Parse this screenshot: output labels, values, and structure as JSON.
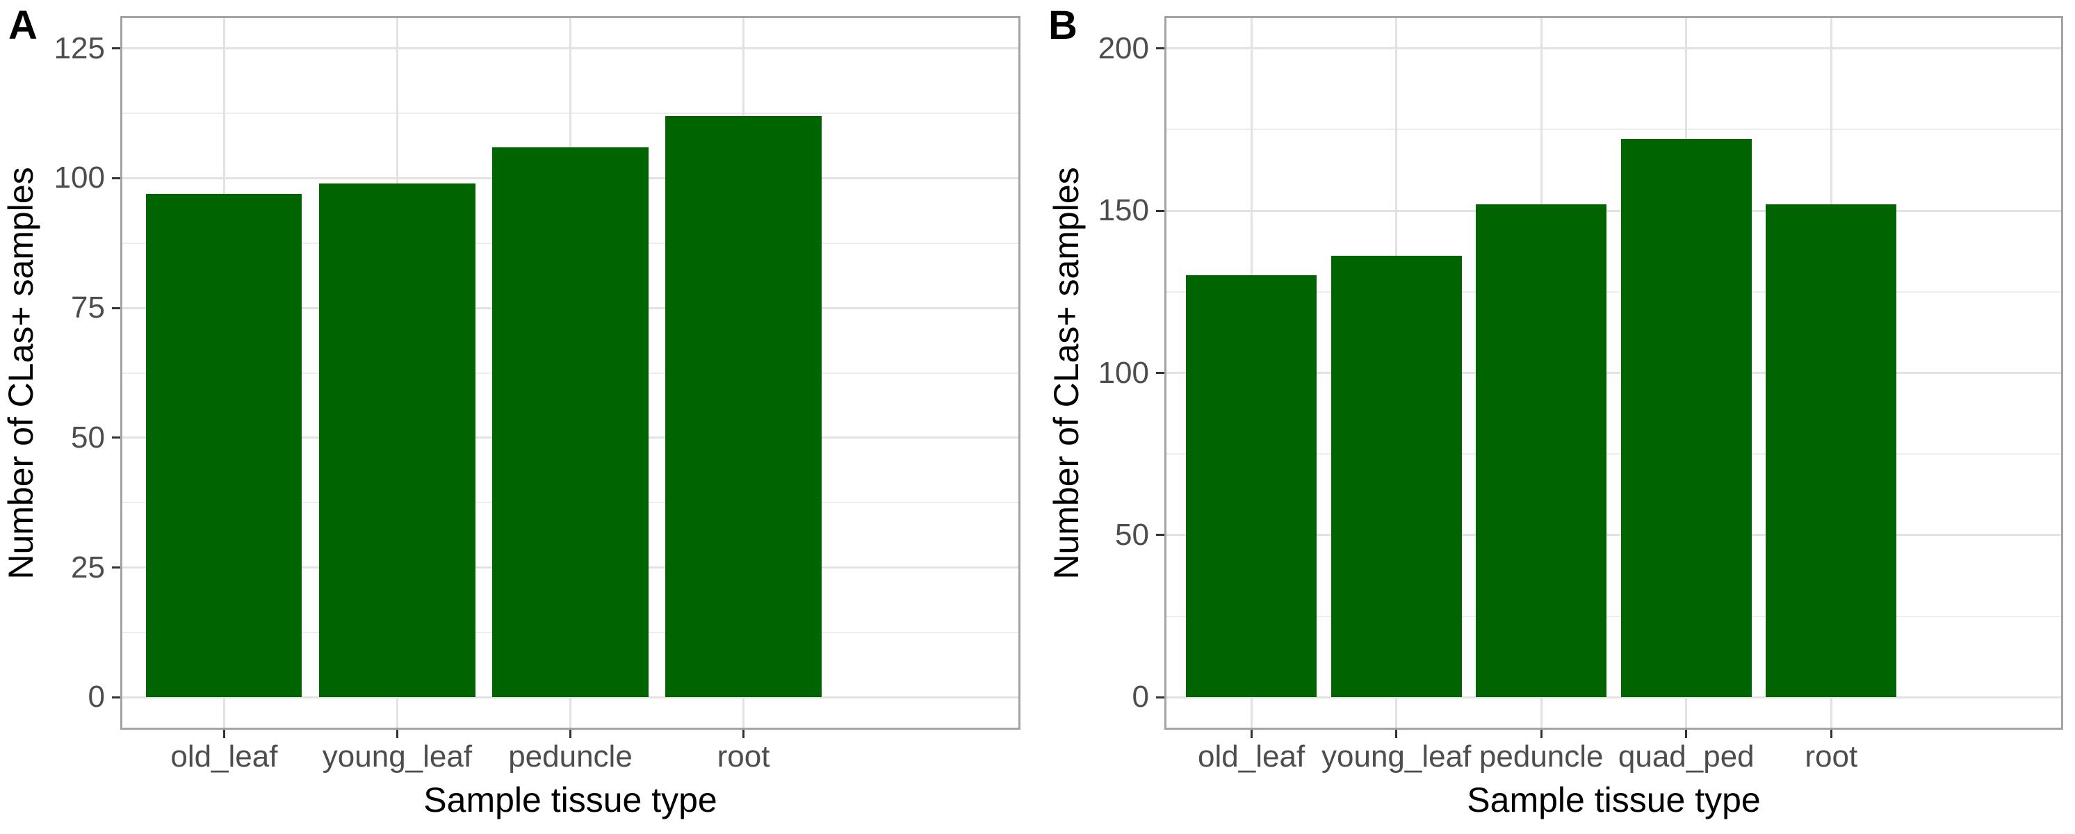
{
  "figure": {
    "background": "#FFFFFF",
    "bar_color": "#006400",
    "panel_border_color": "#A3A3A3",
    "grid_major_color": "#E2E2E2",
    "grid_minor_color": "#EDEDED",
    "tick_mark_color": "#333333",
    "tick_label_color": "#4D4D4D",
    "axis_title_color": "#000000"
  },
  "chart_data": [
    {
      "type": "bar",
      "panel_label": "A",
      "title": "",
      "xlabel": "Sample tissue type",
      "ylabel": "Number of CLas+ samples",
      "categories": [
        "old_leaf",
        "young_leaf",
        "peduncle",
        "root"
      ],
      "values": [
        97,
        99,
        106,
        112
      ],
      "ylim": [
        0,
        125
      ],
      "yticks": [
        0,
        25,
        50,
        75,
        100,
        125
      ],
      "yticks_minor": [
        12.5,
        37.5,
        62.5,
        87.5,
        112.5
      ],
      "bar_color": "#006400",
      "grid": "on",
      "legend": "none"
    },
    {
      "type": "bar",
      "panel_label": "B",
      "title": "",
      "xlabel": "Sample tissue type",
      "ylabel": "Number of CLas+ samples",
      "categories": [
        "old_leaf",
        "young_leaf",
        "peduncle",
        "quad_ped",
        "root"
      ],
      "values": [
        130,
        136,
        152,
        172,
        152
      ],
      "ylim": [
        0,
        200
      ],
      "yticks": [
        0,
        50,
        100,
        150,
        200
      ],
      "yticks_minor": [
        25,
        75,
        125,
        175
      ],
      "bar_color": "#006400",
      "grid": "on",
      "legend": "none"
    }
  ]
}
